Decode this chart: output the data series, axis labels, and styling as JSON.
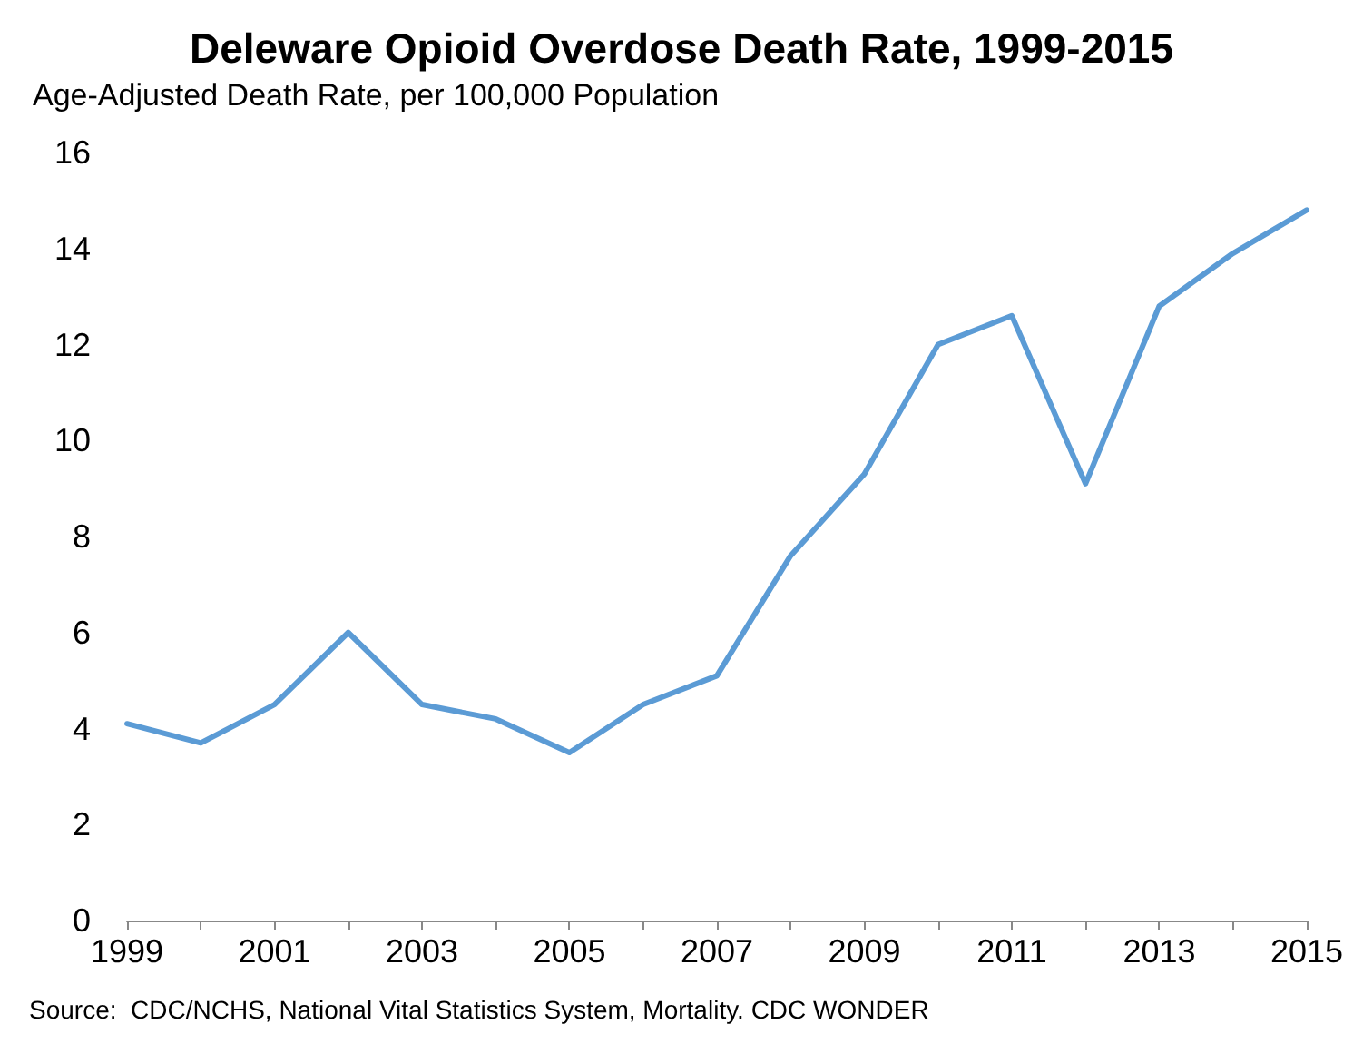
{
  "chart_data": {
    "type": "line",
    "title": "Deleware Opioid Overdose Death Rate, 1999-2015",
    "ylabel": "Age-Adjusted Death Rate, per 100,000 Population",
    "categories": [
      "1999",
      null,
      "2001",
      null,
      "2003",
      null,
      "2005",
      null,
      "2007",
      null,
      "2009",
      null,
      "2011",
      null,
      "2013",
      null,
      "2015"
    ],
    "series": [
      {
        "color": "#5b9bd5",
        "values": [
          4.1,
          3.7,
          4.5,
          6.0,
          4.5,
          4.2,
          3.5,
          4.5,
          5.1,
          7.6,
          9.3,
          12.0,
          12.6,
          9.1,
          12.8,
          13.9,
          14.8
        ]
      }
    ],
    "ylim": [
      0,
      16
    ],
    "yticks": [
      0,
      2,
      4,
      6,
      8,
      10,
      12,
      14,
      16
    ],
    "grid": false,
    "marker": "none",
    "line_style": "solid",
    "annotations": [
      "Source:  CDC/NCHS, National Vital Statistics System, Mortality. CDC WONDER"
    ]
  }
}
